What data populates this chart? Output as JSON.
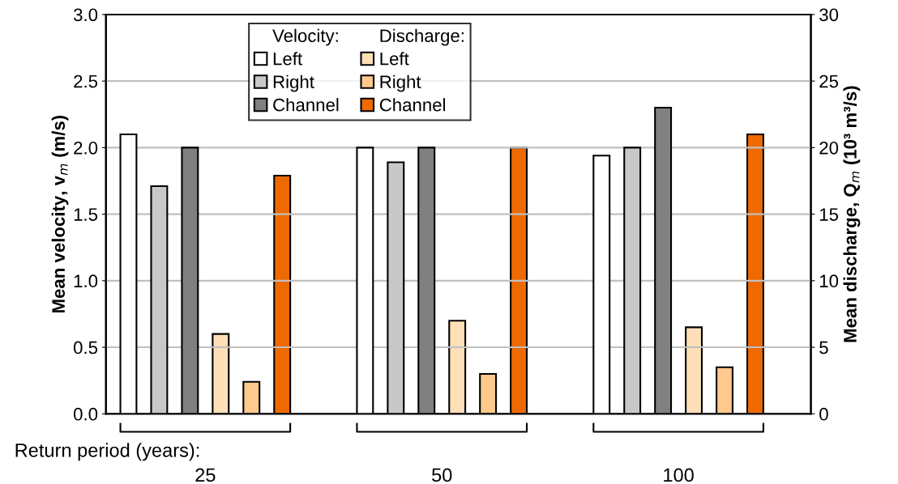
{
  "chart_data": {
    "type": "bar",
    "categories": [
      "25",
      "50",
      "100"
    ],
    "xlabel": "Return period (years):",
    "ylabel": "Mean velocity, v$_{m}$ (m/s)",
    "y2label": "Mean discharge, Q$_{m}$ (10³ m³/s)",
    "series": [
      {
        "name": "Left",
        "color": "#ffffff",
        "values": [
          2.1,
          2.0,
          1.94
        ]
      },
      {
        "name": "Right",
        "color": "#c8c8c8",
        "values": [
          1.71,
          1.89,
          2.0
        ]
      },
      {
        "name": "Channel",
        "color": "#808080",
        "values": [
          2.0,
          2.0,
          2.3
        ]
      },
      {
        "name": "Left",
        "color": "#ffdfb8",
        "values": [
          6.0,
          7.0,
          6.5
        ],
        "axis": "y2"
      },
      {
        "name": "Right",
        "color": "#ffc88c",
        "values": [
          2.4,
          3.0,
          3.5
        ],
        "axis": "y2"
      },
      {
        "name": "Channel",
        "color": "#ee6a00",
        "values": [
          17.9,
          20.0,
          21.0
        ],
        "axis": "y2"
      }
    ],
    "annotations": [
      "Velocity:",
      "Discharge:"
    ],
    "ylim": [
      0,
      3
    ],
    "yticks": [
      {
        "value": 0,
        "label": "0.0"
      },
      {
        "value": 0.5,
        "label": "0.5"
      },
      {
        "value": 1,
        "label": "1.0"
      },
      {
        "value": 1.5,
        "label": "1.5"
      },
      {
        "value": 2,
        "label": "2.0"
      },
      {
        "value": 2.5,
        "label": "2.5"
      },
      {
        "value": 3,
        "label": "3.0"
      }
    ],
    "y2lim": [
      0,
      30
    ],
    "y2ticks": [
      0,
      5,
      10,
      15,
      20,
      25,
      30
    ],
    "grid": "y",
    "legend": "top"
  }
}
